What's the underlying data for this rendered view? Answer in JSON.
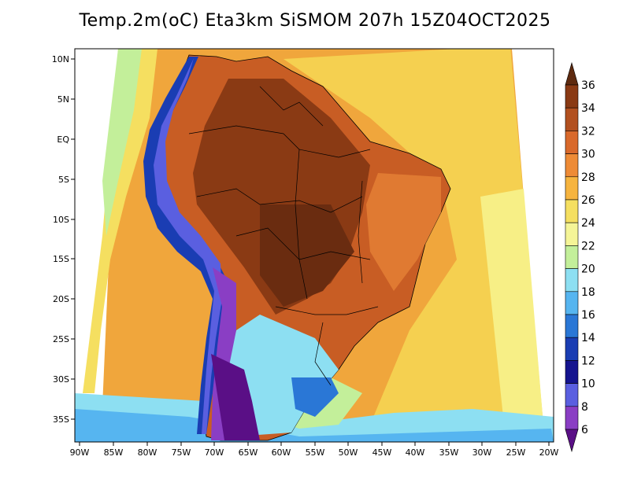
{
  "title": "Temp.2m(oC) Eta3km SiSMOM 207h 15Z04OCT2025",
  "map": {
    "lat_labels": [
      "10N",
      "5N",
      "EQ",
      "5S",
      "10S",
      "15S",
      "20S",
      "25S",
      "30S",
      "35S"
    ],
    "lon_labels": [
      "90W",
      "85W",
      "80W",
      "75W",
      "70W",
      "65W",
      "60W",
      "55W",
      "50W",
      "45W",
      "40W",
      "35W",
      "30W",
      "25W",
      "20W"
    ]
  },
  "colorbar": {
    "labels": [
      "36",
      "34",
      "32",
      "30",
      "28",
      "26",
      "24",
      "22",
      "20",
      "18",
      "16",
      "14",
      "12",
      "10",
      "8",
      "6"
    ],
    "colors": [
      "#5e2a0f",
      "#8a3a14",
      "#b2501f",
      "#d9692b",
      "#ee8b36",
      "#f6b43f",
      "#f5df60",
      "#f5f597",
      "#c3ef9a",
      "#8ddff2",
      "#56b5f0",
      "#2a77d6",
      "#1a3db3",
      "#15148f",
      "#5a5fe0",
      "#8a3ec4",
      "#5a0f86"
    ]
  }
}
